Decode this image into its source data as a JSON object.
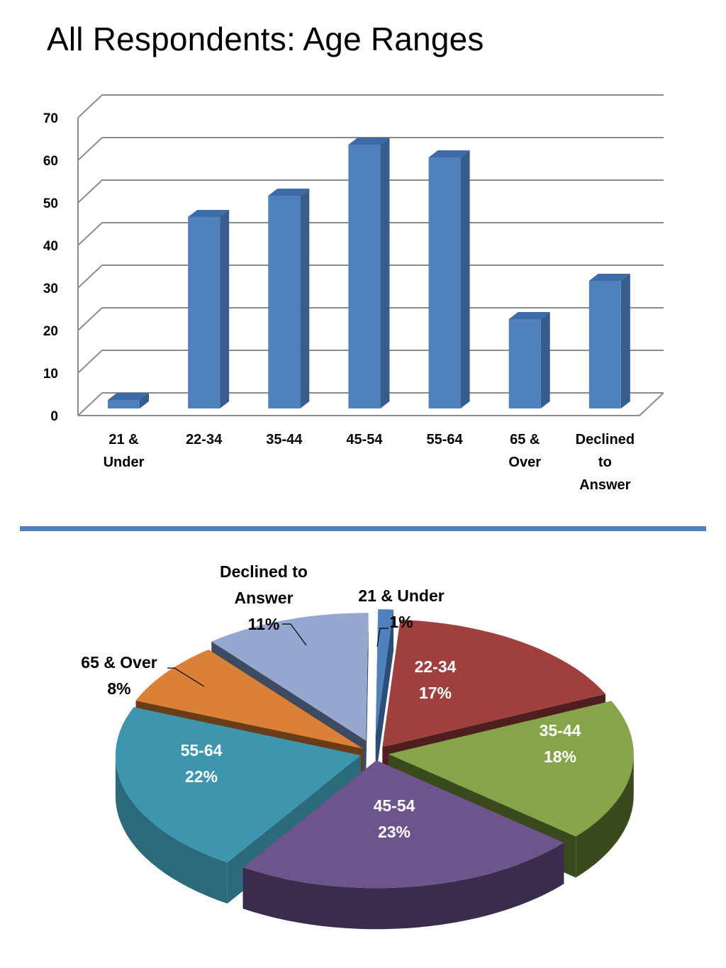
{
  "title": "All Respondents: Age Ranges",
  "chart_data": [
    {
      "type": "bar",
      "categories": [
        [
          "21 &",
          "Under"
        ],
        [
          "22-34"
        ],
        [
          "35-44"
        ],
        [
          "45-54"
        ],
        [
          "55-64"
        ],
        [
          "65 &",
          "Over"
        ],
        [
          "Declined",
          "to",
          "Answer"
        ]
      ],
      "values": [
        2,
        45,
        50,
        62,
        59,
        21,
        30
      ],
      "yticks": [
        0,
        10,
        20,
        30,
        40,
        50,
        60,
        70
      ],
      "ylim": [
        0,
        70
      ],
      "grid": true,
      "style": "3d-column",
      "colors": {
        "front": "#4f81bd",
        "side": "#385d8a",
        "top": "#3d6ba8",
        "grid": "#8c8c8c"
      }
    },
    {
      "type": "pie",
      "style": "3d-exploded",
      "slices": [
        {
          "label": "21 & Under",
          "value": 1,
          "pct_label": "1%",
          "color": "#4f81bd",
          "dark": "#2c4d75"
        },
        {
          "label": "22-34",
          "value": 17,
          "pct_label": "17%",
          "color": "#a0403e",
          "dark": "#4f1f1f"
        },
        {
          "label": "35-44",
          "value": 18,
          "pct_label": "18%",
          "color": "#86a44a",
          "dark": "#3a4a1d"
        },
        {
          "label": "45-54",
          "value": 23,
          "pct_label": "23%",
          "color": "#6e548d",
          "dark": "#3a2c4c"
        },
        {
          "label": "55-64",
          "value": 22,
          "pct_label": "22%",
          "color": "#3d96ae",
          "dark": "#2a6a7b"
        },
        {
          "label": "65 & Over",
          "value": 8,
          "pct_label": "8%",
          "color": "#da8137",
          "dark": "#6a3c17"
        },
        {
          "label": "Declined to Answer",
          "value": 11,
          "pct_label": "11%",
          "color": "#95a9d0",
          "dark": "#3e4a60"
        }
      ]
    }
  ]
}
